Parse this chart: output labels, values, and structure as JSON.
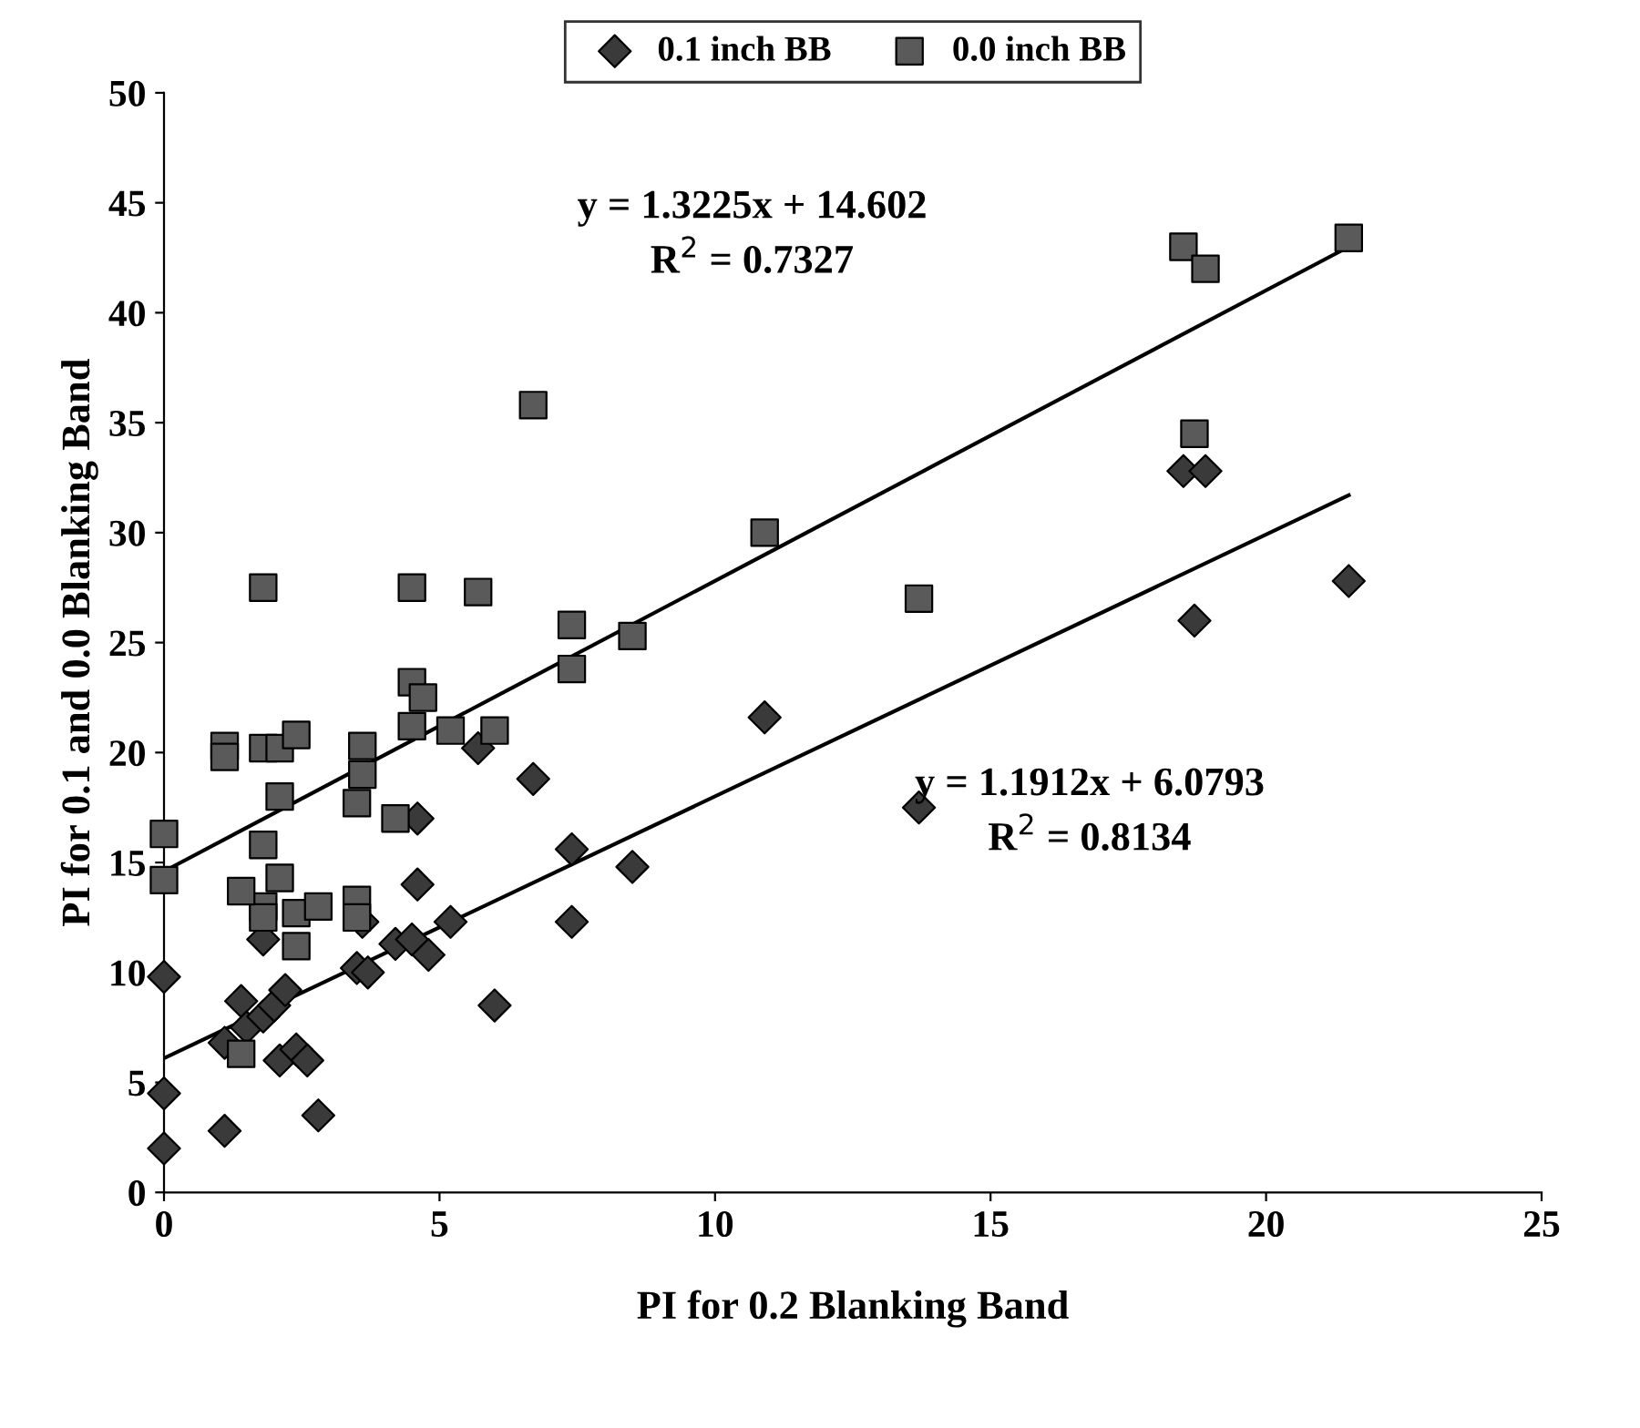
{
  "chart_data": {
    "type": "scatter",
    "xlabel": "PI for 0.2 Blanking Band",
    "ylabel": "PI for 0.1 and 0.0 Blanking Band",
    "xlim": [
      0,
      25
    ],
    "xticks": [
      0,
      5,
      10,
      15,
      20,
      25
    ],
    "ylim": [
      0,
      50
    ],
    "yticks": [
      0,
      5,
      10,
      15,
      20,
      25,
      30,
      35,
      40,
      45,
      50
    ],
    "grid": false,
    "legend": "top",
    "series": [
      {
        "name": "0.1 inch BB",
        "color": "#3a3a3a",
        "marker": "diamond",
        "x": [
          0,
          0,
          0,
          1.1,
          1.1,
          1.4,
          1.5,
          1.8,
          1.8,
          2.0,
          2.1,
          2.2,
          2.4,
          2.6,
          2.8,
          3.5,
          3.7,
          3.6,
          4.2,
          4.5,
          4.6,
          4.6,
          4.8,
          5.2,
          5.7,
          6.0,
          6.7,
          7.4,
          7.4,
          8.5,
          10.9,
          13.7,
          18.5,
          18.9,
          18.7,
          21.5
        ],
        "values": [
          9.8,
          4.5,
          2.0,
          2.8,
          6.8,
          8.7,
          7.5,
          8.0,
          11.5,
          8.5,
          6.0,
          9.2,
          6.5,
          6.0,
          3.5,
          10.2,
          10.0,
          12.3,
          11.3,
          11.5,
          14.0,
          17.0,
          10.8,
          12.3,
          20.2,
          8.5,
          18.8,
          15.6,
          12.3,
          14.8,
          21.6,
          17.5,
          32.8,
          32.8,
          26.0,
          27.8
        ]
      },
      {
        "name": "0.0 inch BB",
        "color": "#5a5a5a",
        "marker": "square",
        "x": [
          0,
          0,
          1.1,
          1.1,
          1.8,
          1.8,
          1.8,
          1.8,
          1.8,
          1.4,
          1.4,
          2.1,
          2.1,
          2.1,
          2.4,
          2.4,
          2.4,
          2.8,
          3.5,
          3.5,
          3.6,
          3.6,
          3.5,
          4.2,
          4.5,
          4.5,
          4.5,
          4.7,
          5.2,
          5.7,
          6.0,
          6.7,
          7.4,
          7.4,
          8.5,
          10.9,
          13.7,
          18.5,
          18.9,
          18.7,
          21.5
        ],
        "values": [
          16.3,
          14.2,
          20.3,
          19.8,
          27.5,
          20.2,
          15.8,
          13.0,
          12.5,
          13.7,
          6.3,
          20.2,
          18.0,
          14.3,
          20.8,
          12.7,
          11.2,
          13.0,
          17.7,
          13.3,
          20.3,
          19.0,
          12.5,
          17.0,
          27.5,
          23.2,
          21.2,
          22.5,
          21.0,
          27.3,
          21.0,
          35.8,
          25.8,
          23.8,
          25.3,
          30.0,
          27.0,
          43.0,
          42.0,
          34.5,
          43.4
        ]
      },
      {
        "type": "line",
        "color": "#000000",
        "marker": "none",
        "x": [
          0,
          21.5
        ],
        "values": [
          6.1,
          31.7
        ]
      },
      {
        "type": "line",
        "color": "#000000",
        "marker": "none",
        "x": [
          0,
          21.5
        ],
        "values": [
          14.6,
          43.0
        ]
      }
    ],
    "annotations": [
      "y = 1.3225x + 14.602\nR$^{2}$ = 0.7327",
      "y = 1.1912x + 6.0793\nR$^{2}$ = 0.8134"
    ]
  }
}
